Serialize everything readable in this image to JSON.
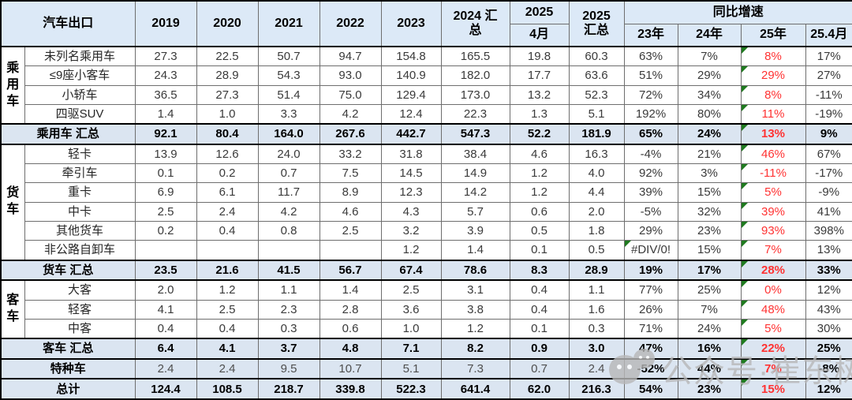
{
  "header": {
    "title": "汽车出口",
    "years": [
      "2019",
      "2020",
      "2021",
      "2022",
      "2023"
    ],
    "y2024_total": "2024 汇总",
    "y2025": "2025",
    "y2025_apr": "4月",
    "y2025_total": "2025 汇总",
    "growth_title": "同比增速",
    "growth_cols": [
      "23年",
      "24年",
      "25年",
      "25.4月"
    ]
  },
  "chart_data": {
    "type": "table",
    "title": "汽车出口",
    "column_headers": [
      "汽车出口",
      "2019",
      "2020",
      "2021",
      "2022",
      "2023",
      "2024 汇总",
      "2025 4月",
      "2025 汇总",
      "同比增速 23年",
      "同比增速 24年",
      "同比增速 25年",
      "同比增速 25.4月"
    ],
    "red_col": 10,
    "groups": [
      {
        "label": "乘用车",
        "start": 0,
        "span": 4
      },
      {
        "label": "货车",
        "start": 5,
        "span": 6
      },
      {
        "label": "客车",
        "start": 12,
        "span": 3
      }
    ],
    "rows": [
      {
        "kind": "data",
        "label": "未列名乘用车",
        "values": [
          "27.3",
          "22.5",
          "50.7",
          "94.7",
          "154.8",
          "165.5",
          "19.8",
          "60.3",
          "63%",
          "7%",
          "8%",
          "17%"
        ],
        "tri": [
          10
        ]
      },
      {
        "kind": "data",
        "label": "≤9座小客车",
        "values": [
          "24.3",
          "28.9",
          "54.3",
          "93.0",
          "140.9",
          "182.0",
          "17.7",
          "63.6",
          "51%",
          "29%",
          "29%",
          "27%"
        ],
        "tri": [
          10
        ]
      },
      {
        "kind": "data",
        "label": "小轿车",
        "values": [
          "36.5",
          "27.3",
          "51.4",
          "75.0",
          "129.4",
          "173.0",
          "13.2",
          "52.3",
          "72%",
          "34%",
          "8%",
          "-11%"
        ],
        "tri": [
          10
        ]
      },
      {
        "kind": "data",
        "label": "四驱SUV",
        "values": [
          "1.4",
          "1.0",
          "3.3",
          "4.2",
          "12.4",
          "22.3",
          "1.3",
          "5.1",
          "192%",
          "80%",
          "11%",
          "-19%"
        ],
        "tri": [
          10
        ]
      },
      {
        "kind": "summary",
        "label": "乘用车 汇总",
        "values": [
          "92.1",
          "80.4",
          "164.0",
          "267.6",
          "442.7",
          "547.3",
          "52.2",
          "181.9",
          "65%",
          "24%",
          "13%",
          "9%"
        ],
        "tri": [
          10
        ]
      },
      {
        "kind": "data",
        "label": "轻卡",
        "values": [
          "13.9",
          "12.6",
          "24.0",
          "33.2",
          "31.8",
          "38.4",
          "4.6",
          "16.3",
          "-4%",
          "21%",
          "46%",
          "67%"
        ],
        "tri": [
          10
        ]
      },
      {
        "kind": "data",
        "label": "牵引车",
        "values": [
          "0.1",
          "0.2",
          "0.7",
          "7.5",
          "14.5",
          "14.9",
          "1.2",
          "4.0",
          "92%",
          "3%",
          "-11%",
          "-17%"
        ],
        "tri": [
          10
        ]
      },
      {
        "kind": "data",
        "label": "重卡",
        "values": [
          "6.9",
          "6.1",
          "11.7",
          "8.9",
          "12.3",
          "14.2",
          "1.2",
          "4.4",
          "39%",
          "15%",
          "5%",
          "-9%"
        ],
        "tri": [
          10
        ]
      },
      {
        "kind": "data",
        "label": "中卡",
        "values": [
          "2.5",
          "2.4",
          "4.2",
          "4.6",
          "4.3",
          "5.7",
          "0.6",
          "2.0",
          "-5%",
          "32%",
          "39%",
          "41%"
        ],
        "tri": [
          10
        ]
      },
      {
        "kind": "data",
        "label": "其他货车",
        "values": [
          "0.2",
          "0.4",
          "0.8",
          "2.5",
          "3.2",
          "3.9",
          "0.5",
          "1.8",
          "29%",
          "23%",
          "93%",
          "398%"
        ],
        "tri": [
          10
        ]
      },
      {
        "kind": "data",
        "label": "非公路自卸车",
        "values": [
          "",
          "",
          "",
          "",
          "1.2",
          "1.4",
          "0.1",
          "0.5",
          "#DIV/0!",
          "15%",
          "7%",
          "13%"
        ],
        "tri": [
          8,
          10
        ]
      },
      {
        "kind": "summary",
        "label": "货车 汇总",
        "values": [
          "23.5",
          "21.6",
          "41.5",
          "56.7",
          "67.4",
          "78.6",
          "8.3",
          "28.9",
          "19%",
          "17%",
          "28%",
          "33%"
        ],
        "tri": [
          10
        ]
      },
      {
        "kind": "data",
        "label": "大客",
        "values": [
          "2.0",
          "1.2",
          "1.1",
          "1.4",
          "2.5",
          "3.1",
          "0.4",
          "1.1",
          "77%",
          "25%",
          "0%",
          "12%"
        ],
        "tri": [
          10
        ]
      },
      {
        "kind": "data",
        "label": "轻客",
        "values": [
          "4.1",
          "2.5",
          "2.3",
          "2.8",
          "3.6",
          "3.8",
          "0.4",
          "1.6",
          "26%",
          "7%",
          "48%",
          "43%"
        ],
        "tri": [
          10
        ]
      },
      {
        "kind": "data",
        "label": "中客",
        "values": [
          "0.4",
          "0.4",
          "0.3",
          "0.6",
          "1.0",
          "1.2",
          "0.1",
          "0.3",
          "71%",
          "24%",
          "5%",
          "30%"
        ],
        "tri": [
          10
        ]
      },
      {
        "kind": "summary",
        "label": "客车 汇总",
        "values": [
          "6.4",
          "4.1",
          "3.7",
          "4.8",
          "7.1",
          "8.2",
          "0.9",
          "3.0",
          "47%",
          "16%",
          "22%",
          "25%"
        ],
        "tri": [
          10
        ]
      },
      {
        "kind": "special",
        "label": "特种车",
        "values": [
          "2.4",
          "2.4",
          "9.5",
          "10.7",
          "5.1",
          "7.3",
          "0.7",
          "2.4",
          "-52%",
          "44%",
          "7%",
          "-8%"
        ],
        "tri": [
          10
        ]
      },
      {
        "kind": "summary",
        "label": "总计",
        "values": [
          "124.4",
          "108.5",
          "218.7",
          "339.8",
          "522.3",
          "641.4",
          "62.0",
          "216.3",
          "54%",
          "23%",
          "15%",
          "12%"
        ],
        "tri": [
          10
        ]
      }
    ]
  },
  "watermark": {
    "text": "公众号·崔东树",
    "icon": "wechat-icon"
  },
  "colors": {
    "header_bg": "#dce9f7",
    "summary_bg": "#dbe5f1",
    "red_text": "#ff3232",
    "green_marker": "#1f7a1f",
    "thin_border": "#6e6e6e",
    "thick_border": "#000000",
    "watermark_gray": "#b8b8b8"
  }
}
